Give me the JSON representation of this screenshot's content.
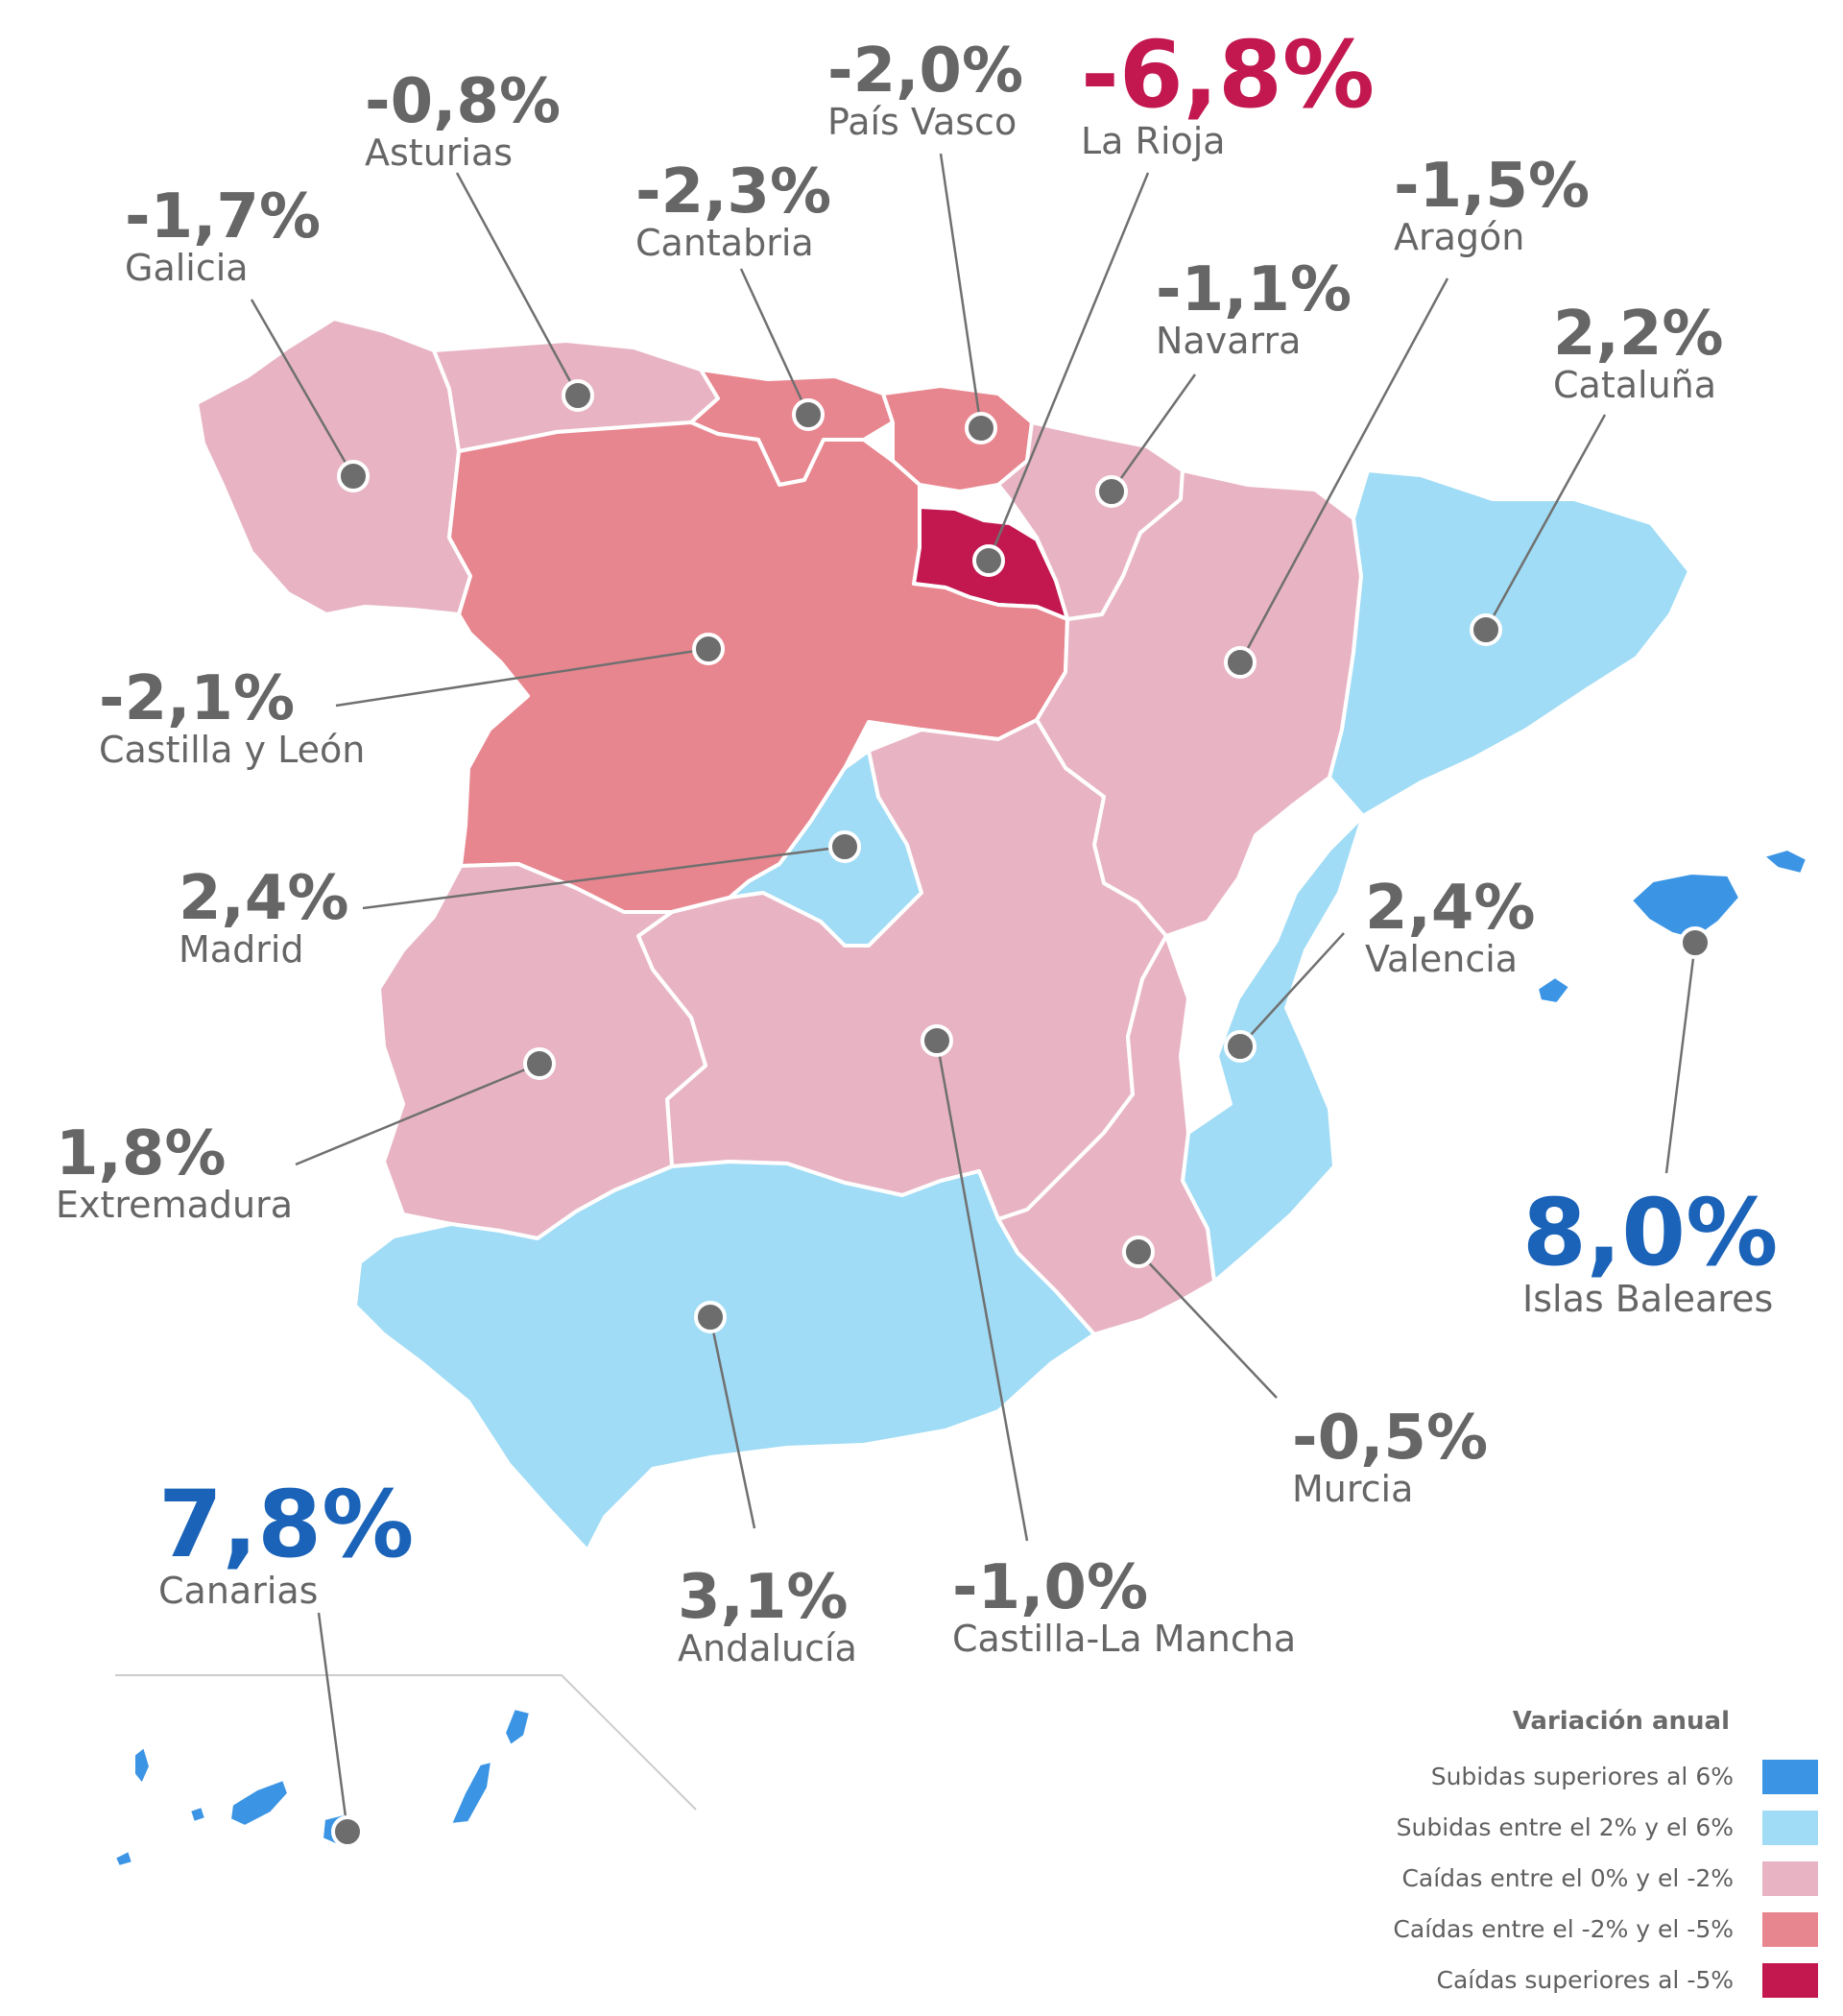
{
  "colors": {
    "dark_blue": "#3b95e4",
    "light_blue": "#a0dcf5",
    "light_pink": "#e8b4c4",
    "mid_pink": "#e8868f",
    "crimson": "#c2184f",
    "value_red": "#c2184f",
    "value_blue": "#1a63b8",
    "value_gray": "#666666"
  },
  "regions": [
    {
      "id": "galicia",
      "name": "Galicia",
      "value": "-1,7%"
    },
    {
      "id": "asturias",
      "name": "Asturias",
      "value": "-0,8%"
    },
    {
      "id": "cantabria",
      "name": "Cantabria",
      "value": "-2,3%"
    },
    {
      "id": "pais_vasco",
      "name": "País Vasco",
      "value": "-2,0%"
    },
    {
      "id": "la_rioja",
      "name": "La Rioja",
      "value": "-6,8%"
    },
    {
      "id": "navarra",
      "name": "Navarra",
      "value": "-1,1%"
    },
    {
      "id": "aragon",
      "name": "Aragón",
      "value": "-1,5%"
    },
    {
      "id": "cataluna",
      "name": "Cataluña",
      "value": "2,2%"
    },
    {
      "id": "castilla_leon",
      "name": "Castilla y León",
      "value": "-2,1%"
    },
    {
      "id": "madrid",
      "name": "Madrid",
      "value": "2,4%"
    },
    {
      "id": "valencia",
      "name": "Valencia",
      "value": "2,4%"
    },
    {
      "id": "extremadura",
      "name": "Extremadura",
      "value": "1,8%"
    },
    {
      "id": "baleares",
      "name": "Islas Baleares",
      "value": "8,0%"
    },
    {
      "id": "murcia",
      "name": "Murcia",
      "value": "-0,5%"
    },
    {
      "id": "canarias",
      "name": "Canarias",
      "value": "7,8%"
    },
    {
      "id": "andalucia",
      "name": "Andalucía",
      "value": "3,1%"
    },
    {
      "id": "castilla_mancha",
      "name": "Castilla-La Mancha",
      "value": "-1,0%"
    }
  ],
  "legend": {
    "title": "Variación anual",
    "items": [
      {
        "label": "Subidas superiores al 6%",
        "color": "#3b95e4"
      },
      {
        "label": "Subidas entre el 2% y el 6%",
        "color": "#a0dcf5"
      },
      {
        "label": "Caídas entre el 0% y el -2%",
        "color": "#e8b4c4"
      },
      {
        "label": "Caídas entre el -2% y el -5%",
        "color": "#e8868f"
      },
      {
        "label": "Caídas superiores al -5%",
        "color": "#c2184f"
      }
    ]
  }
}
